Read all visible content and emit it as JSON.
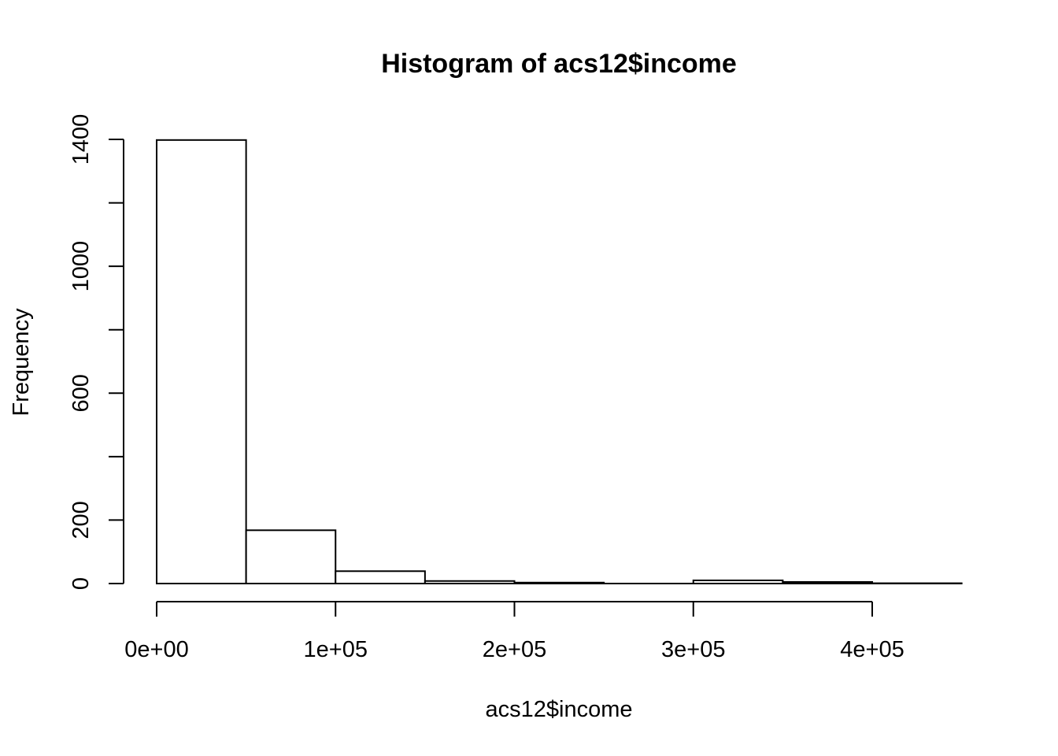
{
  "chart_data": {
    "type": "bar",
    "title": "Histogram of acs12$income",
    "xlabel": "acs12$income",
    "ylabel": "Frequency",
    "bins": [
      {
        "start": 0,
        "end": 50000,
        "count": 1398
      },
      {
        "start": 50000,
        "end": 100000,
        "count": 168
      },
      {
        "start": 100000,
        "end": 150000,
        "count": 39
      },
      {
        "start": 150000,
        "end": 200000,
        "count": 8
      },
      {
        "start": 200000,
        "end": 250000,
        "count": 3
      },
      {
        "start": 250000,
        "end": 300000,
        "count": 0
      },
      {
        "start": 300000,
        "end": 350000,
        "count": 10
      },
      {
        "start": 350000,
        "end": 400000,
        "count": 5
      },
      {
        "start": 400000,
        "end": 450000,
        "count": 1
      }
    ],
    "xlim": [
      0,
      450000
    ],
    "ylim": [
      0,
      1400
    ],
    "x_ticks": [
      {
        "value": 0,
        "label": "0e+00"
      },
      {
        "value": 100000,
        "label": "1e+05"
      },
      {
        "value": 200000,
        "label": "2e+05"
      },
      {
        "value": 300000,
        "label": "3e+05"
      },
      {
        "value": 400000,
        "label": "4e+05"
      }
    ],
    "y_ticks": [
      {
        "value": 0,
        "label": "0"
      },
      {
        "value": 200,
        "label": "200"
      },
      {
        "value": 400,
        "label": ""
      },
      {
        "value": 600,
        "label": "600"
      },
      {
        "value": 800,
        "label": ""
      },
      {
        "value": 1000,
        "label": "1000"
      },
      {
        "value": 1200,
        "label": ""
      },
      {
        "value": 1400,
        "label": "1400"
      }
    ],
    "grid": false,
    "legend": "none"
  }
}
